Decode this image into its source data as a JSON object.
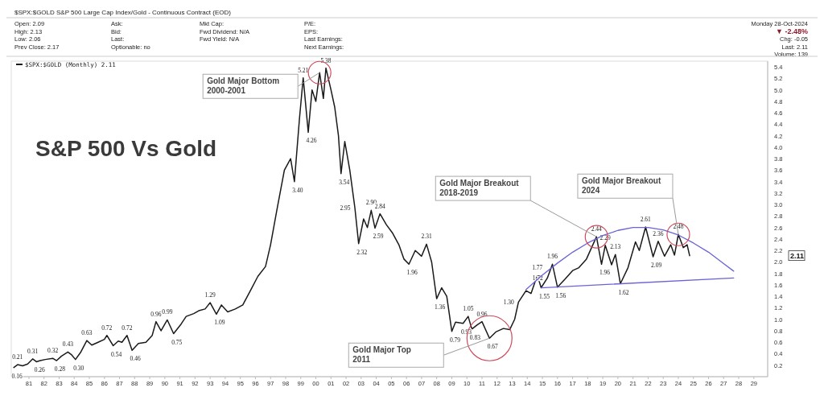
{
  "chart_data": {
    "type": "line",
    "title": "S&P 500 Vs Gold",
    "subtitle": "$SPX:$GOLD S&P 500 Large Cap Index/Gold - Continuous Contract (EOD)",
    "x": [
      "1980-01",
      "1980-04",
      "1980-08",
      "1980-12",
      "1981-04",
      "1981-07",
      "1981-10",
      "1982-02",
      "1982-08",
      "1982-11",
      "1983-03",
      "1983-08",
      "1983-11",
      "1984-02",
      "1984-06",
      "1984-11",
      "1985-03",
      "1985-08",
      "1986-01",
      "1986-03",
      "1986-08",
      "1986-12",
      "1987-03",
      "1987-07",
      "1987-11",
      "1988-04",
      "1988-10",
      "1989-03",
      "1989-06",
      "1989-10",
      "1990-03",
      "1990-08",
      "1991-02",
      "1991-06",
      "1991-12",
      "1992-04",
      "1992-09",
      "1993-01",
      "1993-06",
      "1993-10",
      "1994-03",
      "1994-09",
      "1995-03",
      "1995-09",
      "1996-03",
      "1996-09",
      "1997-01",
      "1997-06",
      "1997-12",
      "1998-05",
      "1998-08",
      "1998-12",
      "1999-03",
      "1999-07",
      "1999-10",
      "2000-01",
      "2000-04",
      "2000-07",
      "2000-09",
      "2001-01",
      "2001-04",
      "2001-07",
      "2001-09",
      "2001-12",
      "2002-04",
      "2002-08",
      "2002-11",
      "2003-03",
      "2003-06",
      "2003-09",
      "2003-12",
      "2004-04",
      "2004-09",
      "2005-02",
      "2005-07",
      "2005-11",
      "2006-03",
      "2006-08",
      "2007-01",
      "2007-05",
      "2007-09",
      "2008-01",
      "2008-05",
      "2008-09",
      "2009-01",
      "2009-04",
      "2009-10",
      "2010-02",
      "2010-05",
      "2010-09",
      "2011-01",
      "2011-07",
      "2011-12",
      "2012-06",
      "2012-11",
      "2013-03",
      "2013-06",
      "2013-12",
      "2014-04",
      "2014-09",
      "2014-12",
      "2015-05",
      "2015-09",
      "2016-01",
      "2016-07",
      "2017-01",
      "2017-06",
      "2017-12",
      "2018-08",
      "2018-12",
      "2019-03",
      "2019-08",
      "2019-11",
      "2020-03",
      "2020-09",
      "2021-03",
      "2021-06",
      "2021-11",
      "2022-05",
      "2022-09",
      "2023-02",
      "2023-07",
      "2023-10",
      "2024-01",
      "2024-05",
      "2024-08",
      "2024-10"
    ],
    "series": [
      {
        "name": "$SPX:$GOLD (Monthly) 2.11",
        "color": "#1a1a1a",
        "values": [
          0.16,
          0.21,
          0.19,
          0.22,
          0.31,
          0.26,
          0.28,
          0.3,
          0.32,
          0.28,
          0.36,
          0.43,
          0.38,
          0.3,
          0.42,
          0.63,
          0.55,
          0.6,
          0.65,
          0.72,
          0.54,
          0.62,
          0.6,
          0.72,
          0.46,
          0.58,
          0.6,
          0.72,
          0.96,
          0.8,
          0.99,
          0.75,
          0.92,
          1.05,
          1.1,
          1.15,
          1.18,
          1.29,
          1.09,
          1.25,
          1.13,
          1.18,
          1.25,
          1.5,
          1.75,
          1.92,
          2.3,
          2.9,
          3.6,
          3.8,
          3.4,
          4.5,
          5.21,
          4.26,
          5.0,
          4.8,
          5.3,
          4.85,
          5.38,
          5.0,
          4.7,
          4.2,
          3.54,
          4.1,
          3.6,
          2.95,
          2.32,
          2.75,
          2.6,
          2.9,
          2.59,
          2.84,
          2.65,
          2.5,
          2.3,
          2.05,
          1.96,
          2.2,
          2.1,
          2.31,
          2.0,
          1.36,
          1.55,
          1.4,
          0.79,
          0.95,
          0.93,
          1.05,
          0.83,
          0.9,
          0.96,
          0.67,
          0.78,
          0.84,
          0.82,
          1.0,
          1.3,
          1.5,
          1.45,
          1.77,
          1.55,
          1.72,
          1.96,
          1.56,
          1.7,
          1.85,
          1.9,
          2.05,
          2.44,
          1.96,
          2.29,
          1.95,
          2.13,
          1.62,
          1.9,
          2.35,
          2.2,
          2.61,
          2.09,
          2.36,
          2.1,
          2.3,
          2.12,
          2.48,
          2.25,
          2.3,
          2.11
        ],
        "value_labels": [
          "0.16",
          "0.21",
          null,
          null,
          "0.31",
          "0.26",
          null,
          null,
          "0.32",
          "0.28",
          null,
          "0.43",
          null,
          "0.30",
          null,
          "0.63",
          null,
          null,
          null,
          "0.72",
          "0.54",
          null,
          null,
          "0.72",
          "0.46",
          null,
          null,
          null,
          "0.96",
          null,
          "0.99",
          "0.75",
          null,
          null,
          null,
          null,
          null,
          "1.29",
          "1.09",
          null,
          null,
          null,
          null,
          null,
          null,
          null,
          null,
          null,
          null,
          null,
          "3.40",
          null,
          "5.21",
          "4.26",
          null,
          null,
          null,
          null,
          "5.38",
          null,
          null,
          null,
          "3.54",
          null,
          null,
          "2.95",
          "2.32",
          null,
          null,
          "2.90",
          "2.59",
          "2.84",
          null,
          null,
          null,
          null,
          "1.96",
          null,
          null,
          "2.31",
          null,
          "1.36",
          null,
          null,
          "0.79",
          null,
          "0.93",
          "1.05",
          "0.83",
          null,
          "0.96",
          "0.67",
          null,
          null,
          null,
          null,
          "1.30",
          null,
          null,
          "1.77",
          "1.55",
          "1.72",
          "1.96",
          "1.56",
          null,
          null,
          null,
          null,
          "2.44",
          "1.96",
          "2.29",
          null,
          "2.13",
          "1.62",
          null,
          null,
          null,
          "2.61",
          "2.09",
          "2.36",
          null,
          null,
          null,
          "2.48",
          null,
          null,
          null
        ]
      },
      {
        "type": "line",
        "color": "#6b63d6",
        "x": [
          "2013-12",
          "2015-01",
          "2016-01",
          "2017-01",
          "2018-01",
          "2019-01",
          "2020-01",
          "2021-01",
          "2022-01",
          "2023-01",
          "2024-01",
          "2025-01",
          "2026-01",
          "2027-01",
          "2027-09"
        ],
        "values": [
          1.52,
          1.77,
          1.98,
          2.17,
          2.33,
          2.46,
          2.55,
          2.6,
          2.6,
          2.56,
          2.47,
          2.33,
          2.17,
          1.97,
          1.84
        ]
      },
      {
        "type": "line",
        "color": "#6b63d6",
        "x": [
          "2014-12",
          "2027-09"
        ],
        "values": [
          1.55,
          1.72
        ]
      }
    ],
    "xlim": [
      "1979-11",
      "2029-12"
    ],
    "xticks": [
      {
        "value": "1981-01",
        "label": "81"
      },
      {
        "value": "1982-01",
        "label": "82"
      },
      {
        "value": "1983-01",
        "label": "83"
      },
      {
        "value": "1984-01",
        "label": "84"
      },
      {
        "value": "1985-01",
        "label": "85"
      },
      {
        "value": "1986-01",
        "label": "86"
      },
      {
        "value": "1987-01",
        "label": "87"
      },
      {
        "value": "1988-01",
        "label": "88"
      },
      {
        "value": "1989-01",
        "label": "89"
      },
      {
        "value": "1990-01",
        "label": "90"
      },
      {
        "value": "1991-01",
        "label": "91"
      },
      {
        "value": "1992-01",
        "label": "92"
      },
      {
        "value": "1993-01",
        "label": "93"
      },
      {
        "value": "1994-01",
        "label": "94"
      },
      {
        "value": "1995-01",
        "label": "95"
      },
      {
        "value": "1996-01",
        "label": "96"
      },
      {
        "value": "1997-01",
        "label": "97"
      },
      {
        "value": "1998-01",
        "label": "98"
      },
      {
        "value": "1999-01",
        "label": "99"
      },
      {
        "value": "2000-01",
        "label": "00"
      },
      {
        "value": "2001-01",
        "label": "01"
      },
      {
        "value": "2002-01",
        "label": "02"
      },
      {
        "value": "2003-01",
        "label": "03"
      },
      {
        "value": "2004-01",
        "label": "04"
      },
      {
        "value": "2005-01",
        "label": "05"
      },
      {
        "value": "2006-01",
        "label": "06"
      },
      {
        "value": "2007-01",
        "label": "07"
      },
      {
        "value": "2008-01",
        "label": "08"
      },
      {
        "value": "2009-01",
        "label": "09"
      },
      {
        "value": "2010-01",
        "label": "10"
      },
      {
        "value": "2011-01",
        "label": "11"
      },
      {
        "value": "2012-01",
        "label": "12"
      },
      {
        "value": "2013-01",
        "label": "13"
      },
      {
        "value": "2014-01",
        "label": "14"
      },
      {
        "value": "2015-01",
        "label": "15"
      },
      {
        "value": "2016-01",
        "label": "16"
      },
      {
        "value": "2017-01",
        "label": "17"
      },
      {
        "value": "2018-01",
        "label": "18"
      },
      {
        "value": "2019-01",
        "label": "19"
      },
      {
        "value": "2020-01",
        "label": "20"
      },
      {
        "value": "2021-01",
        "label": "21"
      },
      {
        "value": "2022-01",
        "label": "22"
      },
      {
        "value": "2023-01",
        "label": "23"
      },
      {
        "value": "2024-01",
        "label": "24"
      },
      {
        "value": "2025-01",
        "label": "25"
      },
      {
        "value": "2026-01",
        "label": "26"
      },
      {
        "value": "2027-01",
        "label": "27"
      },
      {
        "value": "2028-01",
        "label": "28"
      },
      {
        "value": "2029-01",
        "label": "29"
      }
    ],
    "ylim": [
      0,
      5.5
    ],
    "yticks": [
      {
        "value": 0.2,
        "label": "0.2"
      },
      {
        "value": 0.4,
        "label": "0.4"
      },
      {
        "value": 0.6,
        "label": "0.6"
      },
      {
        "value": 0.8,
        "label": "0.8"
      },
      {
        "value": 1.0,
        "label": "1.0"
      },
      {
        "value": 1.2,
        "label": "1.2"
      },
      {
        "value": 1.4,
        "label": "1.4"
      },
      {
        "value": 1.6,
        "label": "1.6"
      },
      {
        "value": 1.8,
        "label": "1.8"
      },
      {
        "value": 2.0,
        "label": "2.0"
      },
      {
        "value": 2.2,
        "label": "2.2"
      },
      {
        "value": 2.4,
        "label": "2.4"
      },
      {
        "value": 2.6,
        "label": "2.6"
      },
      {
        "value": 2.8,
        "label": "2.8"
      },
      {
        "value": 3.0,
        "label": "3.0"
      },
      {
        "value": 3.2,
        "label": "3.2"
      },
      {
        "value": 3.4,
        "label": "3.4"
      },
      {
        "value": 3.6,
        "label": "3.6"
      },
      {
        "value": 3.8,
        "label": "3.8"
      },
      {
        "value": 4.0,
        "label": "4.0"
      },
      {
        "value": 4.2,
        "label": "4.2"
      },
      {
        "value": 4.4,
        "label": "4.4"
      },
      {
        "value": 4.6,
        "label": "4.6"
      },
      {
        "value": 4.8,
        "label": "4.8"
      },
      {
        "value": 5.0,
        "label": "5.0"
      },
      {
        "value": 5.2,
        "label": "5.2"
      },
      {
        "value": 5.4,
        "label": "5.4"
      }
    ],
    "legend": "top left",
    "annotations": [
      "Open: 2.09",
      "High: 2.13",
      "Low: 2.06",
      "Prev Close: 2.17",
      "Ask:",
      "Bid:",
      "Last:",
      "Optionable: no",
      "Mkt Cap:",
      "Fwd Dividend: N/A",
      "Fwd Yield: N/A",
      "P/E:",
      "EPS:",
      "Last Earnings:",
      "Next Earnings:",
      "Monday 28-Oct-2024",
      "▼ -2.48%",
      "Chg: -0.05",
      "Last: 2.11",
      "Volume: 139",
      "Gold Major Bottom\n2000-2001",
      "Gold Major Top\n2011",
      "Gold Major Breakout\n2018-2019",
      "Gold Major Breakout\n2024",
      "2.11"
    ]
  }
}
